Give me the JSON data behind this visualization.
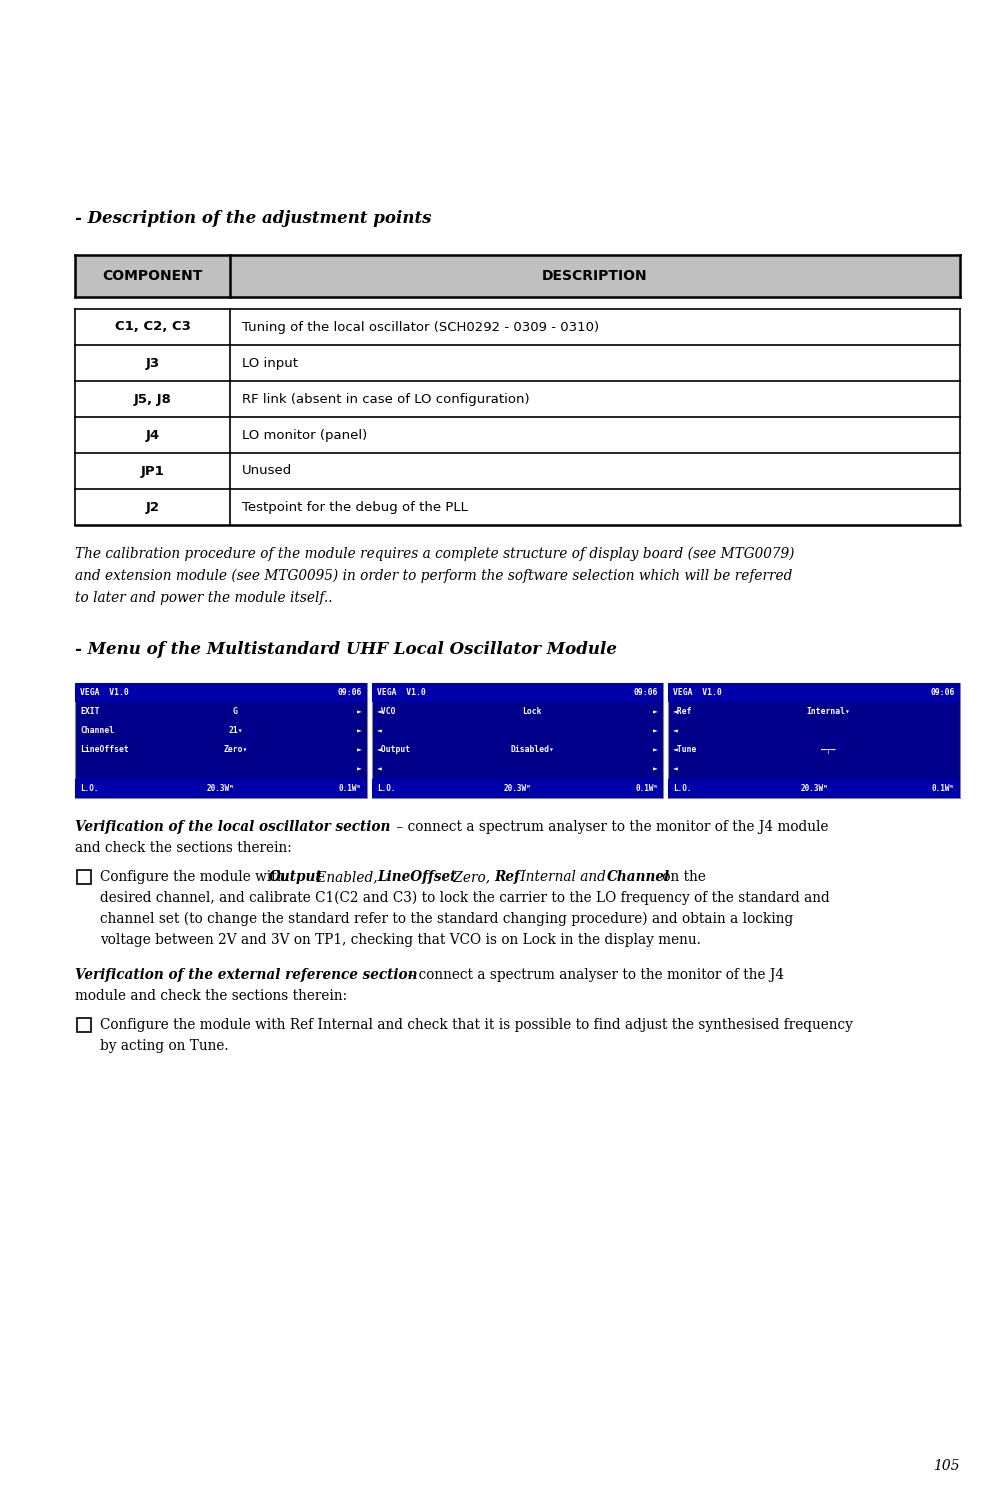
{
  "page_number": "105",
  "bg_color": "#ffffff",
  "ml": 0.075,
  "mr": 0.965,
  "heading1": "- Description of the adjustment points",
  "table_header": [
    "COMPONENT",
    "DESCRIPTION"
  ],
  "table_rows": [
    [
      "C1, C2, C3",
      "Tuning of the local oscillator (SCH0292 - 0309 - 0310)"
    ],
    [
      "J3",
      "LO input"
    ],
    [
      "J5, J8",
      "RF link (absent in case of LO configuration)"
    ],
    [
      "J4",
      "LO monitor (panel)"
    ],
    [
      "JP1",
      "Unused"
    ],
    [
      "J2",
      "Testpoint for the debug of the PLL"
    ]
  ],
  "italic_lines": [
    "The calibration procedure of the module requires a complete structure of display board (see MTG0079)",
    "and extension module (see MTG0095) in order to perform the software selection which will be referred",
    "to later and power the module itself.."
  ],
  "heading2": "- Menu of the Multistandard UHF Local Oscillator Module",
  "screens": [
    {
      "title_left": "VEGA  V1.0",
      "title_right": "09:06",
      "lines": [
        {
          "left": "EXIT",
          "mid": "G",
          "right": "►"
        },
        {
          "left": "Channel",
          "mid": "21▾",
          "right": "►"
        },
        {
          "left": "LineOffset",
          "mid": "Zero▾",
          "right": "►"
        },
        {
          "left": "",
          "mid": "",
          "right": "►"
        },
        {
          "left": "L.O.",
          "mid": "20.3Wᴹ",
          "right": "0.1Wᴿ",
          "status": true
        }
      ]
    },
    {
      "title_left": "VEGA  V1.0",
      "title_right": "09:06",
      "lines": [
        {
          "left": "◄VCO",
          "mid": "Lock",
          "right": "►"
        },
        {
          "left": "◄",
          "mid": "",
          "right": "►"
        },
        {
          "left": "◄Output",
          "mid": "Disabled▾",
          "right": "►"
        },
        {
          "left": "◄",
          "mid": "",
          "right": "►"
        },
        {
          "left": "L.O.",
          "mid": "20.3Wᴹ",
          "right": "0.1Wᴿ",
          "status": true
        }
      ]
    },
    {
      "title_left": "VEGA  V1.0",
      "title_right": "09:06",
      "lines": [
        {
          "left": "◄Ref",
          "mid": "Internal▾",
          "right": ""
        },
        {
          "left": "◄",
          "mid": "",
          "right": ""
        },
        {
          "left": "◄Tune",
          "mid": "—┬—",
          "right": ""
        },
        {
          "left": "◄",
          "mid": "",
          "right": ""
        },
        {
          "left": "L.O.",
          "mid": "20.3Wᴹ",
          "right": "0.1Wᴿ",
          "status": true
        }
      ]
    }
  ],
  "v1_bold": "Verification of the local oscillator section",
  "v1_rest_line1": " – connect a spectrum analyser to the monitor of the J4 module",
  "v1_rest_line2": "and check the sections therein:",
  "v2_bold": "Verification of the external reference section",
  "v2_rest_line1": " – connect a spectrum analyser to the monitor of the J4",
  "v2_rest_line2": "module and check the sections therein:",
  "header_bg": "#c0c0c0",
  "screen_bg": "#00008B",
  "screen_fg": "#ffffff",
  "screen_title_bg": "#1a1acd",
  "screen_status_bg": "#000077"
}
